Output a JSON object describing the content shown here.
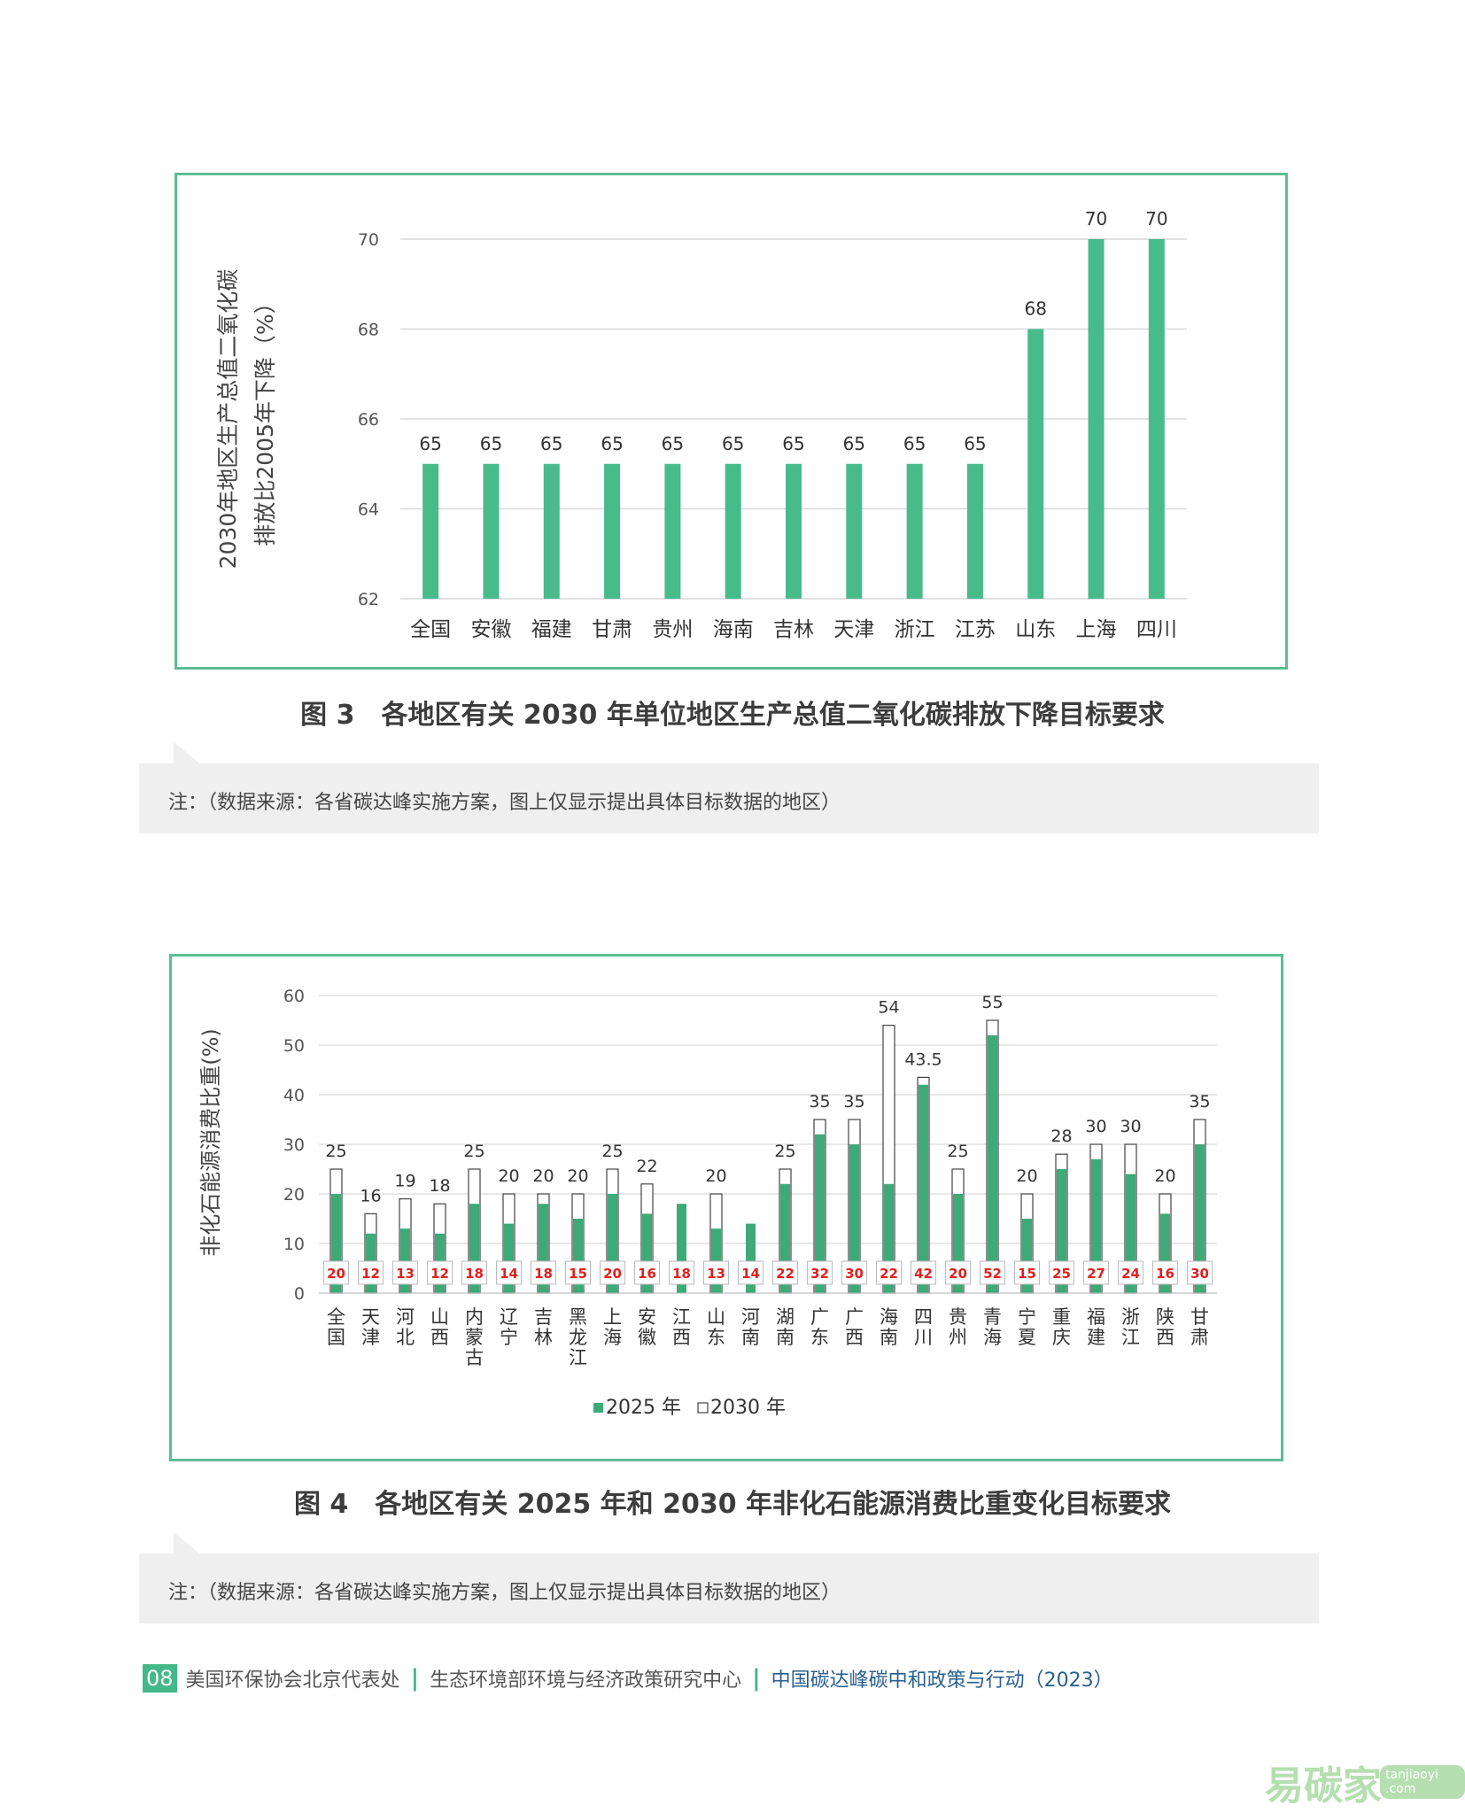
{
  "charts": {
    "chart1": {
      "type": "bar",
      "ylabel_line1": "2030年地区生产总值二氧化碳",
      "ylabel_line2": "排放比2005年下降（%）",
      "ylim": [
        62,
        70
      ],
      "yticks": [
        "62",
        "64",
        "66",
        "68",
        "70"
      ],
      "bar_color": "#48bb8b",
      "caption": "图 3　各地区有关 2030 年单位地区生产总值二氧化碳排放下降目标要求",
      "note": "注：（数据来源：各省碳达峰实施方案，图上仅显示提出具体目标数据的地区）"
    },
    "chart2": {
      "type": "bar",
      "ylabel": "非化石能源消费比重(%)",
      "ylim": [
        0,
        60
      ],
      "yticks": [
        "0",
        "10",
        "20",
        "30",
        "40",
        "50",
        "60"
      ],
      "colors": {
        "2025": "#3daa78",
        "2030": "#ffffff",
        "label_red": "#e02020"
      },
      "legend": [
        "2025 年",
        "2030 年"
      ],
      "caption": "图 4　各地区有关 2025 年和 2030 年非化石能源消费比重变化目标要求",
      "note": "注：（数据来源：各省碳达峰实施方案，图上仅显示提出具体目标数据的地区）"
    }
  },
  "chart_data": [
    {
      "type": "bar",
      "categories": [
        "全国",
        "安徽",
        "福建",
        "甘肃",
        "贵州",
        "海南",
        "吉林",
        "天津",
        "浙江",
        "江苏",
        "山东",
        "上海",
        "四川"
      ],
      "values": [
        65,
        65,
        65,
        65,
        65,
        65,
        65,
        65,
        65,
        65,
        68,
        70,
        70
      ],
      "value_labels": [
        "65",
        "65",
        "65",
        "65",
        "65",
        "65",
        "65",
        "65",
        "65",
        "65",
        "68",
        "70",
        "70"
      ],
      "ylim": [
        62,
        70
      ]
    },
    {
      "type": "bar",
      "categories": [
        "全国",
        "天津",
        "河北",
        "山西",
        "内蒙古",
        "辽宁",
        "吉林",
        "黑龙江",
        "上海",
        "安徽",
        "江西",
        "山东",
        "河南",
        "湖南",
        "广东",
        "广西",
        "海南",
        "四川",
        "贵州",
        "青海",
        "宁夏",
        "重庆",
        "福建",
        "浙江",
        "陕西",
        "甘肃"
      ],
      "series": [
        {
          "name": "2025 年",
          "values": [
            20,
            12,
            13,
            12,
            18,
            14,
            18,
            15,
            20,
            16,
            18,
            13,
            14,
            22,
            32,
            30,
            22,
            42,
            20,
            52,
            15,
            25,
            27,
            24,
            16,
            30
          ],
          "labels": [
            "20",
            "12",
            "13",
            "12",
            "18",
            "14",
            "18",
            "15",
            "20",
            "16",
            "18",
            "13",
            "14",
            "22",
            "32",
            "30",
            "22",
            "42",
            "20",
            "52",
            "15",
            "25",
            "27",
            "24",
            "16",
            "30"
          ]
        },
        {
          "name": "2030 年",
          "values": [
            25,
            16,
            19,
            18,
            25,
            20,
            20,
            20,
            25,
            22,
            null,
            20,
            null,
            25,
            35,
            35,
            54,
            43.5,
            25,
            55,
            20,
            28,
            30,
            30,
            20,
            35
          ],
          "labels": [
            "25",
            "16",
            "19",
            "18",
            "25",
            "20",
            "20",
            "20",
            "25",
            "22",
            "",
            "20",
            "",
            "25",
            "35",
            "35",
            "54",
            "43.5",
            "25",
            "55",
            "20",
            "28",
            "30",
            "30",
            "20",
            "35"
          ]
        }
      ],
      "ylim": [
        0,
        60
      ]
    }
  ],
  "footer": {
    "page_number": "08",
    "org1": "美国环保协会北京代表处",
    "sep": "|",
    "org2": "生态环境部环境与经济政策研究中心",
    "title": "中国碳达峰碳中和政策与行动（2023）"
  },
  "watermark": {
    "text": "易碳家",
    "badge": "tanjiaoyi .com"
  }
}
